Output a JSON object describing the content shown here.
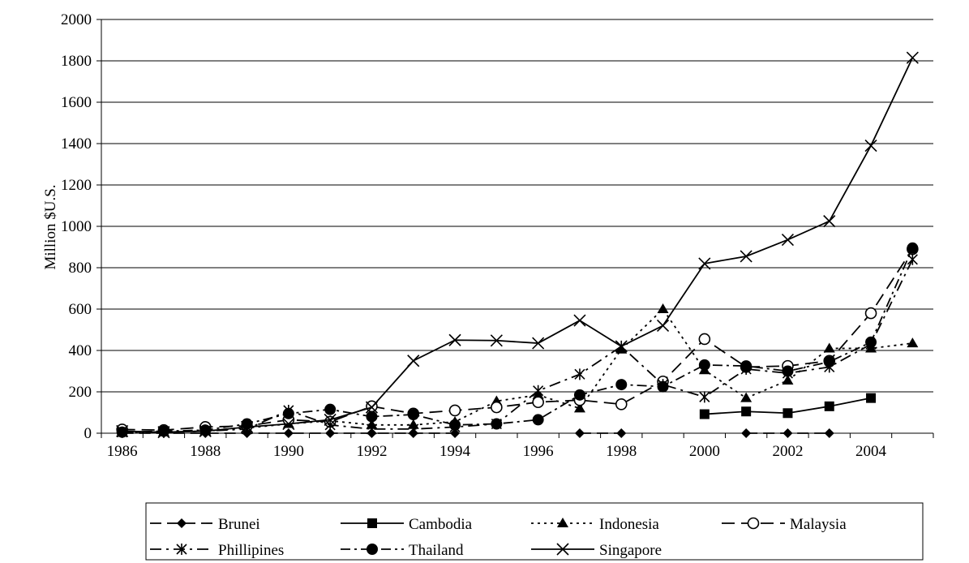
{
  "chart_data": {
    "type": "line",
    "title": "",
    "xlabel": "",
    "ylabel": "Million $U.S.",
    "x": [
      1986,
      1987,
      1988,
      1989,
      1990,
      1991,
      1992,
      1993,
      1994,
      1995,
      1996,
      1997,
      1998,
      1999,
      2000,
      2001,
      2002,
      2003,
      2004,
      2005
    ],
    "x_ticks": [
      "1986",
      "1988",
      "1990",
      "1992",
      "1994",
      "1996",
      "1998",
      "2000",
      "2002",
      "2004"
    ],
    "y_ticks": [
      "0",
      "200",
      "400",
      "600",
      "800",
      "1000",
      "1200",
      "1400",
      "1600",
      "1800",
      "2000"
    ],
    "ylim": [
      0,
      2000
    ],
    "xlim": [
      1986,
      2005
    ],
    "grid": "horizontal",
    "legend_position": "bottom",
    "series": [
      {
        "name": "Brunei",
        "color": "#000000",
        "marker": "diamond",
        "dash": "dash",
        "values": [
          0,
          0,
          0,
          0,
          0,
          0,
          0,
          0,
          0,
          null,
          null,
          0,
          0,
          null,
          null,
          0,
          0,
          0,
          null,
          null
        ]
      },
      {
        "name": "Cambodia",
        "color": "#000000",
        "marker": "square",
        "dash": "solid",
        "values": [
          null,
          null,
          null,
          null,
          null,
          null,
          null,
          null,
          null,
          null,
          null,
          null,
          null,
          null,
          92,
          105,
          97,
          130,
          170,
          null
        ]
      },
      {
        "name": "Indonesia",
        "color": "#000000",
        "marker": "triangle",
        "dash": "dot",
        "values": [
          5,
          5,
          10,
          25,
          45,
          60,
          40,
          40,
          55,
          155,
          185,
          120,
          405,
          600,
          305,
          170,
          255,
          410,
          410,
          435
        ]
      },
      {
        "name": "Malaysia",
        "color": "#000000",
        "marker": "circle-open",
        "dash": "longdash",
        "values": [
          18,
          15,
          30,
          35,
          65,
          55,
          130,
          95,
          110,
          125,
          150,
          160,
          140,
          250,
          455,
          320,
          325,
          350,
          580,
          890
        ]
      },
      {
        "name": "Phillipines",
        "color": "#000000",
        "marker": "asterisk",
        "dash": "dashdot",
        "values": [
          5,
          5,
          10,
          20,
          110,
          40,
          20,
          20,
          30,
          45,
          205,
          285,
          420,
          235,
          175,
          310,
          290,
          320,
          430,
          840
        ]
      },
      {
        "name": "Thailand",
        "color": "#000000",
        "marker": "circle-filled",
        "dash": "dashdot2",
        "values": [
          5,
          10,
          15,
          45,
          95,
          115,
          80,
          90,
          40,
          45,
          65,
          185,
          235,
          225,
          330,
          325,
          300,
          345,
          440,
          895
        ]
      },
      {
        "name": "Singapore",
        "color": "#000000",
        "marker": "x",
        "dash": "solid",
        "values": [
          10,
          5,
          10,
          30,
          45,
          65,
          125,
          350,
          450,
          448,
          435,
          545,
          420,
          520,
          820,
          855,
          935,
          1025,
          1390,
          1815
        ]
      }
    ]
  }
}
